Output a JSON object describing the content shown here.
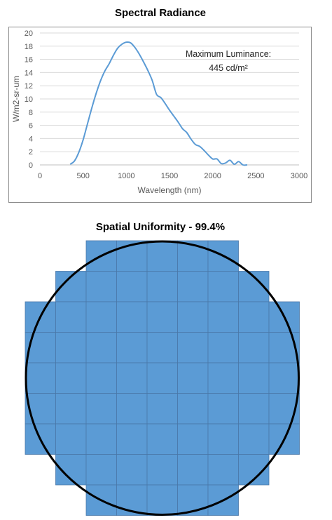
{
  "chart_data": [
    {
      "type": "line",
      "title": "Spectral Radiance",
      "xlabel": "Wavelength (nm)",
      "ylabel": "W/m2-sr-um",
      "xlim": [
        0,
        3000
      ],
      "ylim": [
        0,
        20
      ],
      "x_ticks": [
        "0",
        "500",
        "1000",
        "1500",
        "2000",
        "2500",
        "3000"
      ],
      "y_ticks": [
        "0",
        "2",
        "4",
        "6",
        "8",
        "10",
        "12",
        "14",
        "16",
        "18",
        "20"
      ],
      "grid": "horizontal",
      "annotation": {
        "line1": "Maximum Luminance:",
        "line2": "445 cd/m²"
      },
      "color": "#5b9bd5",
      "series": [
        {
          "x": [
            350,
            400,
            450,
            500,
            550,
            600,
            650,
            700,
            750,
            800,
            850,
            900,
            950,
            1000,
            1050,
            1100,
            1150,
            1200,
            1250,
            1300,
            1350,
            1400,
            1450,
            1500,
            1550,
            1600,
            1650,
            1700,
            1750,
            1800,
            1850,
            1900,
            1950,
            2000,
            2050,
            2100,
            2150,
            2200,
            2250,
            2300,
            2350,
            2400
          ],
          "y": [
            0.1,
            0.6,
            1.9,
            3.8,
            6.2,
            8.6,
            10.8,
            12.7,
            14.2,
            15.3,
            16.6,
            17.7,
            18.3,
            18.6,
            18.5,
            17.8,
            16.8,
            15.6,
            14.3,
            12.8,
            10.7,
            10.2,
            9.3,
            8.3,
            7.4,
            6.5,
            5.5,
            4.9,
            3.9,
            3.1,
            2.8,
            2.2,
            1.5,
            0.9,
            0.9,
            0.2,
            0.3,
            0.7,
            0.1,
            0.5,
            0.0,
            0.0
          ]
        }
      ]
    },
    {
      "type": "heatmap",
      "title": "Spatial Uniformity - 99.4%",
      "rows": 9,
      "cols": 9,
      "cell_color": "#5b9bd5",
      "active_cells": [
        [
          0,
          0,
          1,
          1,
          1,
          1,
          1,
          0,
          0
        ],
        [
          0,
          1,
          1,
          1,
          1,
          1,
          1,
          1,
          0
        ],
        [
          1,
          1,
          1,
          1,
          1,
          1,
          1,
          1,
          1
        ],
        [
          1,
          1,
          1,
          1,
          1,
          1,
          1,
          1,
          1
        ],
        [
          1,
          1,
          1,
          1,
          1,
          1,
          1,
          1,
          1
        ],
        [
          1,
          1,
          1,
          1,
          1,
          1,
          1,
          1,
          1
        ],
        [
          1,
          1,
          1,
          1,
          1,
          1,
          1,
          1,
          1
        ],
        [
          0,
          1,
          1,
          1,
          1,
          1,
          1,
          1,
          0
        ],
        [
          0,
          0,
          1,
          1,
          1,
          1,
          1,
          0,
          0
        ]
      ]
    }
  ]
}
